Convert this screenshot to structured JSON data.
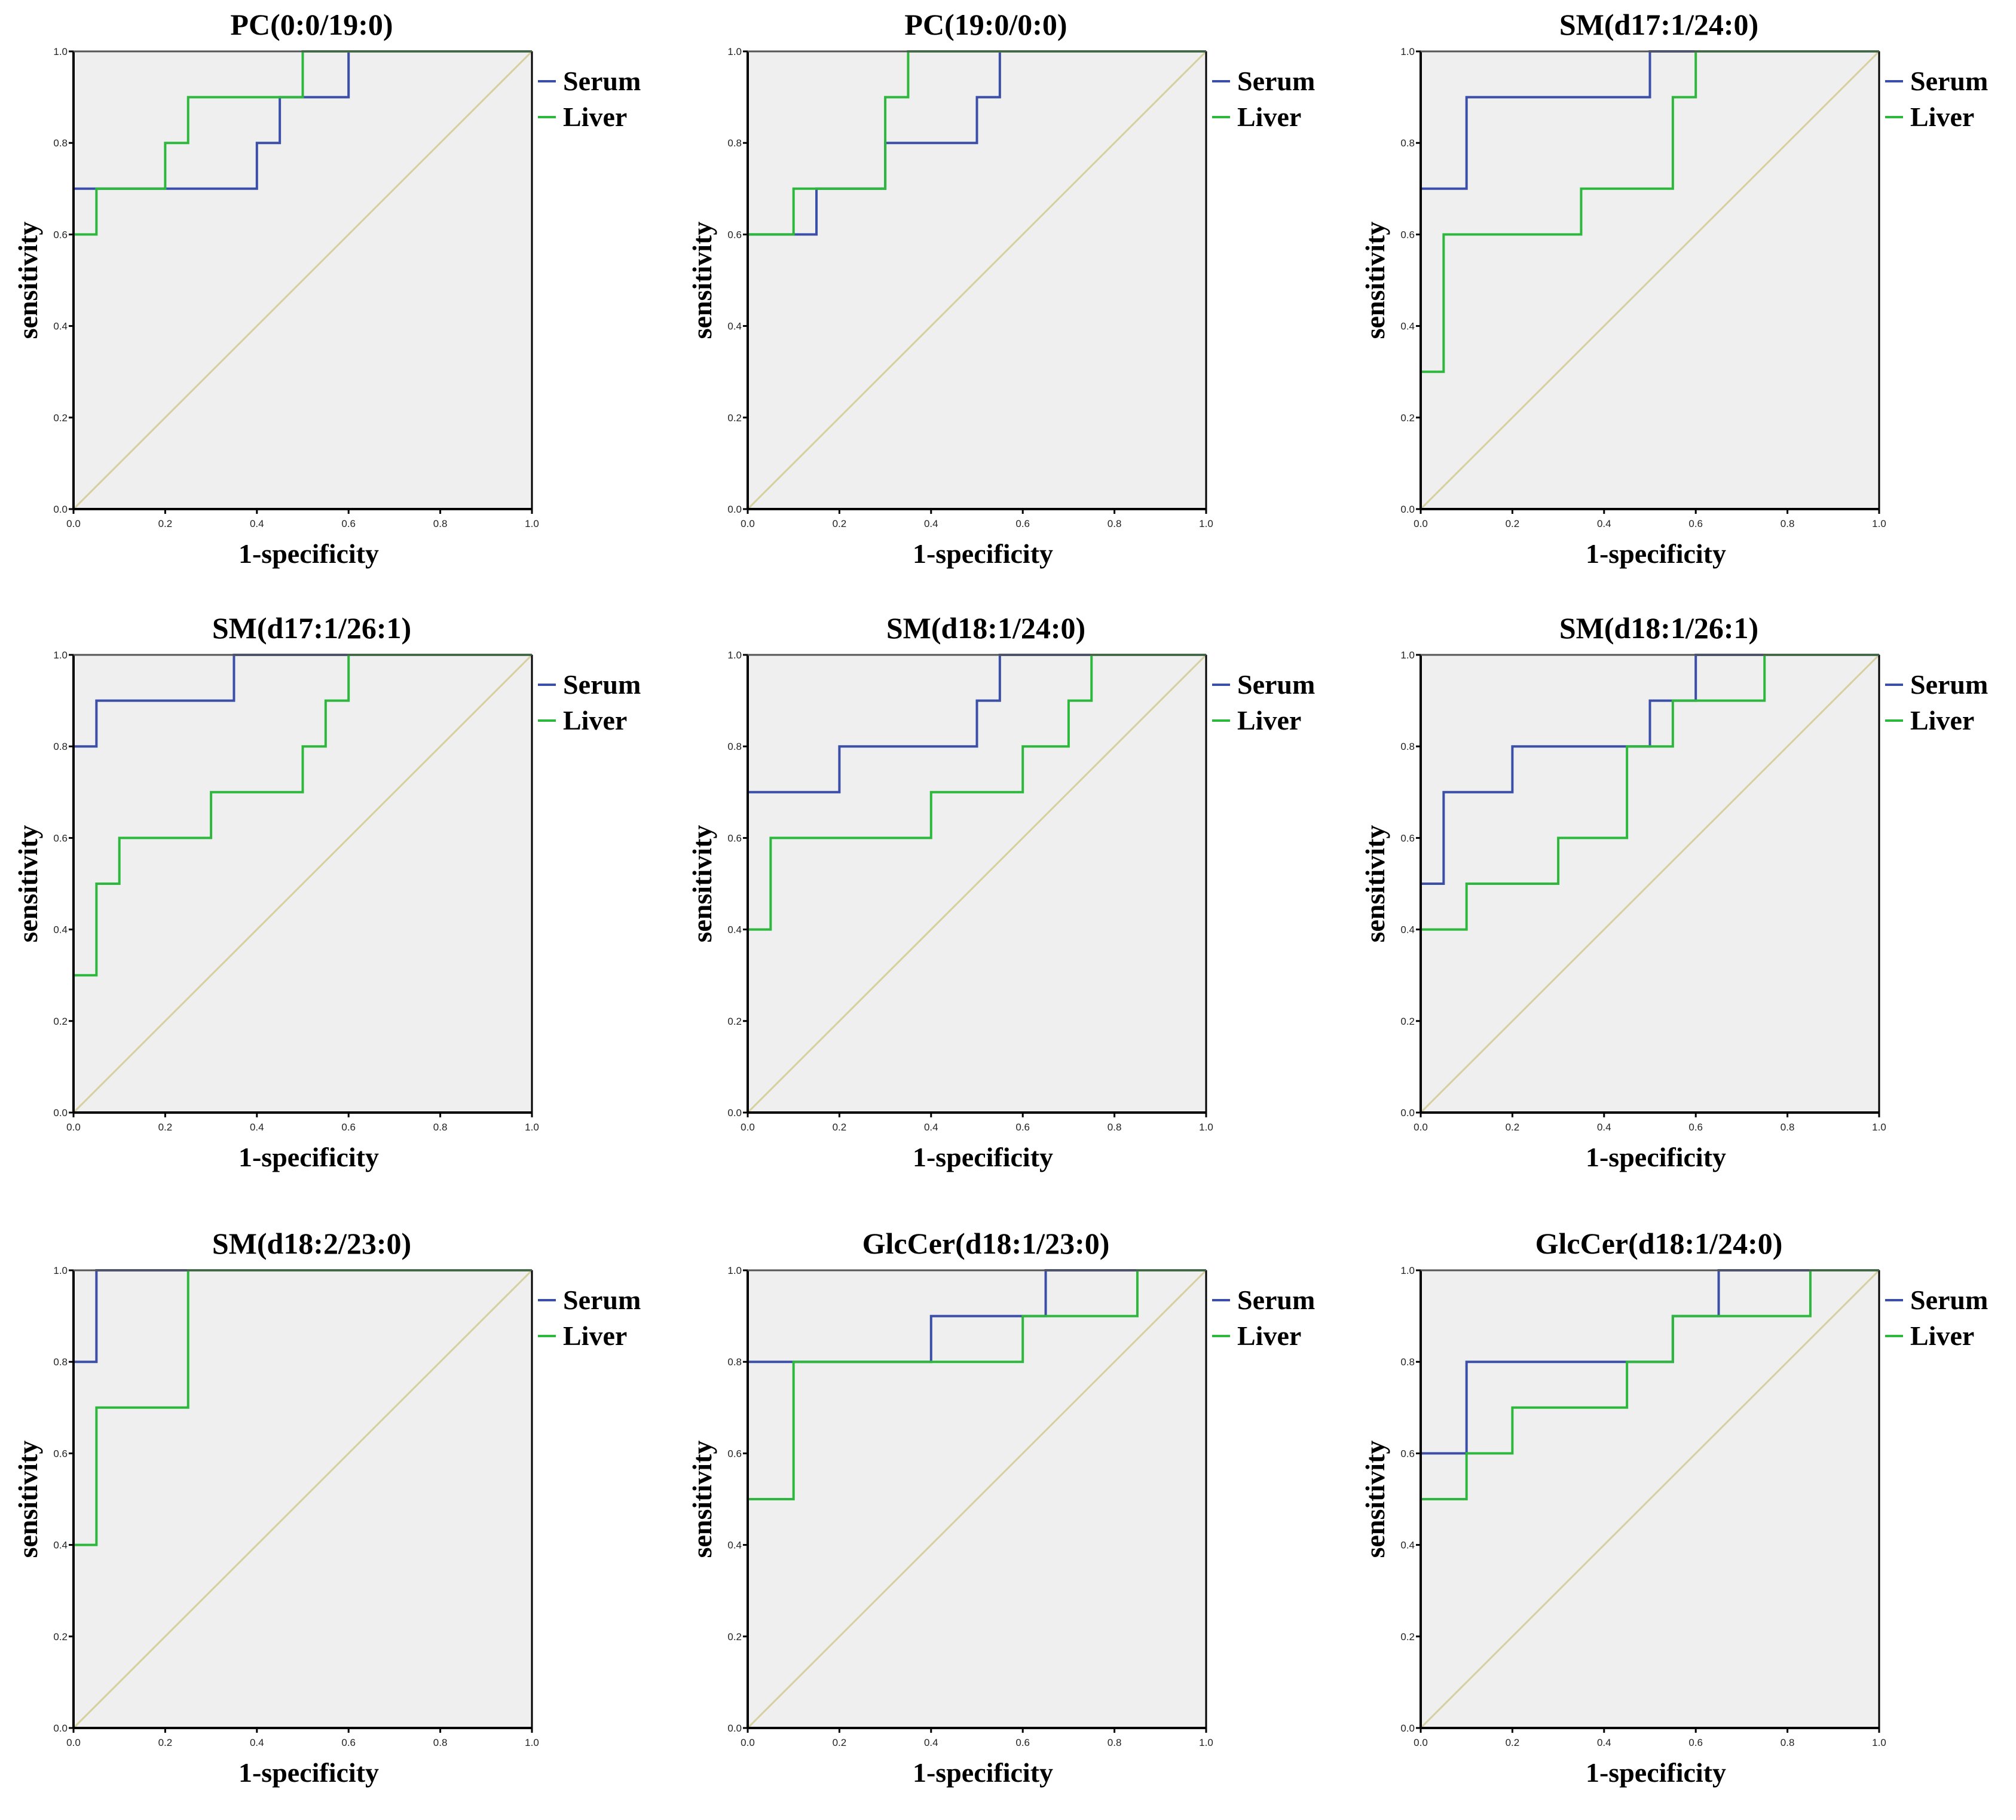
{
  "chart_data": [
    {
      "type": "line",
      "title": "PC(0:0/19:0)",
      "xlabel": "1-specificity",
      "ylabel": "sensitivity",
      "xlim": [
        0,
        1
      ],
      "ylim": [
        0,
        1
      ],
      "xticks": [
        "0.0",
        "0.2",
        "0.4",
        "0.6",
        "0.8",
        "1.0"
      ],
      "yticks": [
        "0.0",
        "0.2",
        "0.4",
        "0.6",
        "0.8",
        "1.0"
      ],
      "legend": "right",
      "series": [
        {
          "name": "Serum",
          "color": "#3b4fa8",
          "steps": [
            [
              0,
              0.7
            ],
            [
              0.4,
              0.8
            ],
            [
              0.45,
              0.9
            ],
            [
              0.6,
              1
            ]
          ]
        },
        {
          "name": "Liver",
          "color": "#2db83d",
          "steps": [
            [
              0,
              0.6
            ],
            [
              0.05,
              0.7
            ],
            [
              0.2,
              0.8
            ],
            [
              0.25,
              0.9
            ],
            [
              0.5,
              1
            ]
          ]
        }
      ]
    },
    {
      "type": "line",
      "title": "PC(19:0/0:0)",
      "xlabel": "1-specificity",
      "ylabel": "sensitivity",
      "xlim": [
        0,
        1
      ],
      "ylim": [
        0,
        1
      ],
      "xticks": [
        "0.0",
        "0.2",
        "0.4",
        "0.6",
        "0.8",
        "1.0"
      ],
      "yticks": [
        "0.0",
        "0.2",
        "0.4",
        "0.6",
        "0.8",
        "1.0"
      ],
      "legend": "right",
      "series": [
        {
          "name": "Serum",
          "color": "#3b4fa8",
          "steps": [
            [
              0,
              0.6
            ],
            [
              0.15,
              0.7
            ],
            [
              0.3,
              0.8
            ],
            [
              0.5,
              0.9
            ],
            [
              0.55,
              1
            ]
          ]
        },
        {
          "name": "Liver",
          "color": "#2db83d",
          "steps": [
            [
              0,
              0.6
            ],
            [
              0.1,
              0.7
            ],
            [
              0.3,
              0.9
            ],
            [
              0.35,
              1
            ]
          ]
        }
      ]
    },
    {
      "type": "line",
      "title": "SM(d17:1/24:0)",
      "xlabel": "1-specificity",
      "ylabel": "sensitivity",
      "xlim": [
        0,
        1
      ],
      "ylim": [
        0,
        1
      ],
      "xticks": [
        "0.0",
        "0.2",
        "0.4",
        "0.6",
        "0.8",
        "1.0"
      ],
      "yticks": [
        "0.0",
        "0.2",
        "0.4",
        "0.6",
        "0.8",
        "1.0"
      ],
      "legend": "right",
      "series": [
        {
          "name": "Serum",
          "color": "#3b4fa8",
          "steps": [
            [
              0,
              0.7
            ],
            [
              0.1,
              0.9
            ],
            [
              0.5,
              1
            ]
          ]
        },
        {
          "name": "Liver",
          "color": "#2db83d",
          "steps": [
            [
              0,
              0.3
            ],
            [
              0.05,
              0.6
            ],
            [
              0.35,
              0.7
            ],
            [
              0.55,
              0.9
            ],
            [
              0.6,
              1
            ]
          ]
        }
      ]
    },
    {
      "type": "line",
      "title": "SM(d17:1/26:1)",
      "xlabel": "1-specificity",
      "ylabel": "sensitivity",
      "xlim": [
        0,
        1
      ],
      "ylim": [
        0,
        1
      ],
      "xticks": [
        "0.0",
        "0.2",
        "0.4",
        "0.6",
        "0.8",
        "1.0"
      ],
      "yticks": [
        "0.0",
        "0.2",
        "0.4",
        "0.6",
        "0.8",
        "1.0"
      ],
      "legend": "right",
      "series": [
        {
          "name": "Serum",
          "color": "#3b4fa8",
          "steps": [
            [
              0,
              0.8
            ],
            [
              0.05,
              0.9
            ],
            [
              0.35,
              1
            ]
          ]
        },
        {
          "name": "Liver",
          "color": "#2db83d",
          "steps": [
            [
              0,
              0.3
            ],
            [
              0.05,
              0.5
            ],
            [
              0.1,
              0.6
            ],
            [
              0.3,
              0.7
            ],
            [
              0.5,
              0.8
            ],
            [
              0.55,
              0.9
            ],
            [
              0.6,
              1
            ]
          ]
        }
      ]
    },
    {
      "type": "line",
      "title": "SM(d18:1/24:0)",
      "xlabel": "1-specificity",
      "ylabel": "sensitivity",
      "xlim": [
        0,
        1
      ],
      "ylim": [
        0,
        1
      ],
      "xticks": [
        "0.0",
        "0.2",
        "0.4",
        "0.6",
        "0.8",
        "1.0"
      ],
      "yticks": [
        "0.0",
        "0.2",
        "0.4",
        "0.6",
        "0.8",
        "1.0"
      ],
      "legend": "right",
      "series": [
        {
          "name": "Serum",
          "color": "#3b4fa8",
          "steps": [
            [
              0,
              0.7
            ],
            [
              0.2,
              0.8
            ],
            [
              0.5,
              0.9
            ],
            [
              0.55,
              1
            ]
          ]
        },
        {
          "name": "Liver",
          "color": "#2db83d",
          "steps": [
            [
              0,
              0.4
            ],
            [
              0.05,
              0.6
            ],
            [
              0.4,
              0.7
            ],
            [
              0.6,
              0.8
            ],
            [
              0.7,
              0.9
            ],
            [
              0.75,
              1
            ]
          ]
        }
      ]
    },
    {
      "type": "line",
      "title": "SM(d18:1/26:1)",
      "xlabel": "1-specificity",
      "ylabel": "sensitivity",
      "xlim": [
        0,
        1
      ],
      "ylim": [
        0,
        1
      ],
      "xticks": [
        "0.0",
        "0.2",
        "0.4",
        "0.6",
        "0.8",
        "1.0"
      ],
      "yticks": [
        "0.0",
        "0.2",
        "0.4",
        "0.6",
        "0.8",
        "1.0"
      ],
      "legend": "right",
      "series": [
        {
          "name": "Serum",
          "color": "#3b4fa8",
          "steps": [
            [
              0,
              0.5
            ],
            [
              0.05,
              0.7
            ],
            [
              0.2,
              0.8
            ],
            [
              0.5,
              0.9
            ],
            [
              0.6,
              1
            ]
          ]
        },
        {
          "name": "Liver",
          "color": "#2db83d",
          "steps": [
            [
              0,
              0.4
            ],
            [
              0.1,
              0.5
            ],
            [
              0.3,
              0.6
            ],
            [
              0.45,
              0.8
            ],
            [
              0.55,
              0.9
            ],
            [
              0.75,
              1
            ]
          ]
        }
      ]
    },
    {
      "type": "line",
      "title": "SM(d18:2/23:0)",
      "xlabel": "1-specificity",
      "ylabel": "sensitivity",
      "xlim": [
        0,
        1
      ],
      "ylim": [
        0,
        1
      ],
      "xticks": [
        "0.0",
        "0.2",
        "0.4",
        "0.6",
        "0.8",
        "1.0"
      ],
      "yticks": [
        "0.0",
        "0.2",
        "0.4",
        "0.6",
        "0.8",
        "1.0"
      ],
      "legend": "right",
      "series": [
        {
          "name": "Serum",
          "color": "#3b4fa8",
          "steps": [
            [
              0,
              0.8
            ],
            [
              0.05,
              1
            ]
          ]
        },
        {
          "name": "Liver",
          "color": "#2db83d",
          "steps": [
            [
              0,
              0.4
            ],
            [
              0.05,
              0.7
            ],
            [
              0.25,
              1
            ]
          ]
        }
      ]
    },
    {
      "type": "line",
      "title": "GlcCer(d18:1/23:0)",
      "xlabel": "1-specificity",
      "ylabel": "sensitivity",
      "xlim": [
        0,
        1
      ],
      "ylim": [
        0,
        1
      ],
      "xticks": [
        "0.0",
        "0.2",
        "0.4",
        "0.6",
        "0.8",
        "1.0"
      ],
      "yticks": [
        "0.0",
        "0.2",
        "0.4",
        "0.6",
        "0.8",
        "1.0"
      ],
      "legend": "right",
      "series": [
        {
          "name": "Serum",
          "color": "#3b4fa8",
          "steps": [
            [
              0,
              0.8
            ],
            [
              0.4,
              0.9
            ],
            [
              0.65,
              1
            ]
          ]
        },
        {
          "name": "Liver",
          "color": "#2db83d",
          "steps": [
            [
              0,
              0.5
            ],
            [
              0.1,
              0.8
            ],
            [
              0.6,
              0.9
            ],
            [
              0.85,
              1
            ]
          ]
        }
      ]
    },
    {
      "type": "line",
      "title": "GlcCer(d18:1/24:0)",
      "xlabel": "1-specificity",
      "ylabel": "sensitivity",
      "xlim": [
        0,
        1
      ],
      "ylim": [
        0,
        1
      ],
      "xticks": [
        "0.0",
        "0.2",
        "0.4",
        "0.6",
        "0.8",
        "1.0"
      ],
      "yticks": [
        "0.0",
        "0.2",
        "0.4",
        "0.6",
        "0.8",
        "1.0"
      ],
      "legend": "right",
      "series": [
        {
          "name": "Serum",
          "color": "#3b4fa8",
          "steps": [
            [
              0,
              0.6
            ],
            [
              0.1,
              0.8
            ],
            [
              0.55,
              0.9
            ],
            [
              0.65,
              1
            ]
          ]
        },
        {
          "name": "Liver",
          "color": "#2db83d",
          "steps": [
            [
              0,
              0.5
            ],
            [
              0.1,
              0.6
            ],
            [
              0.2,
              0.7
            ],
            [
              0.45,
              0.8
            ],
            [
              0.55,
              0.9
            ],
            [
              0.85,
              1
            ]
          ]
        }
      ]
    }
  ],
  "colors": {
    "plot_bg": "#efefef",
    "reference_line": "#d6cf9e",
    "axis": "#000000"
  }
}
